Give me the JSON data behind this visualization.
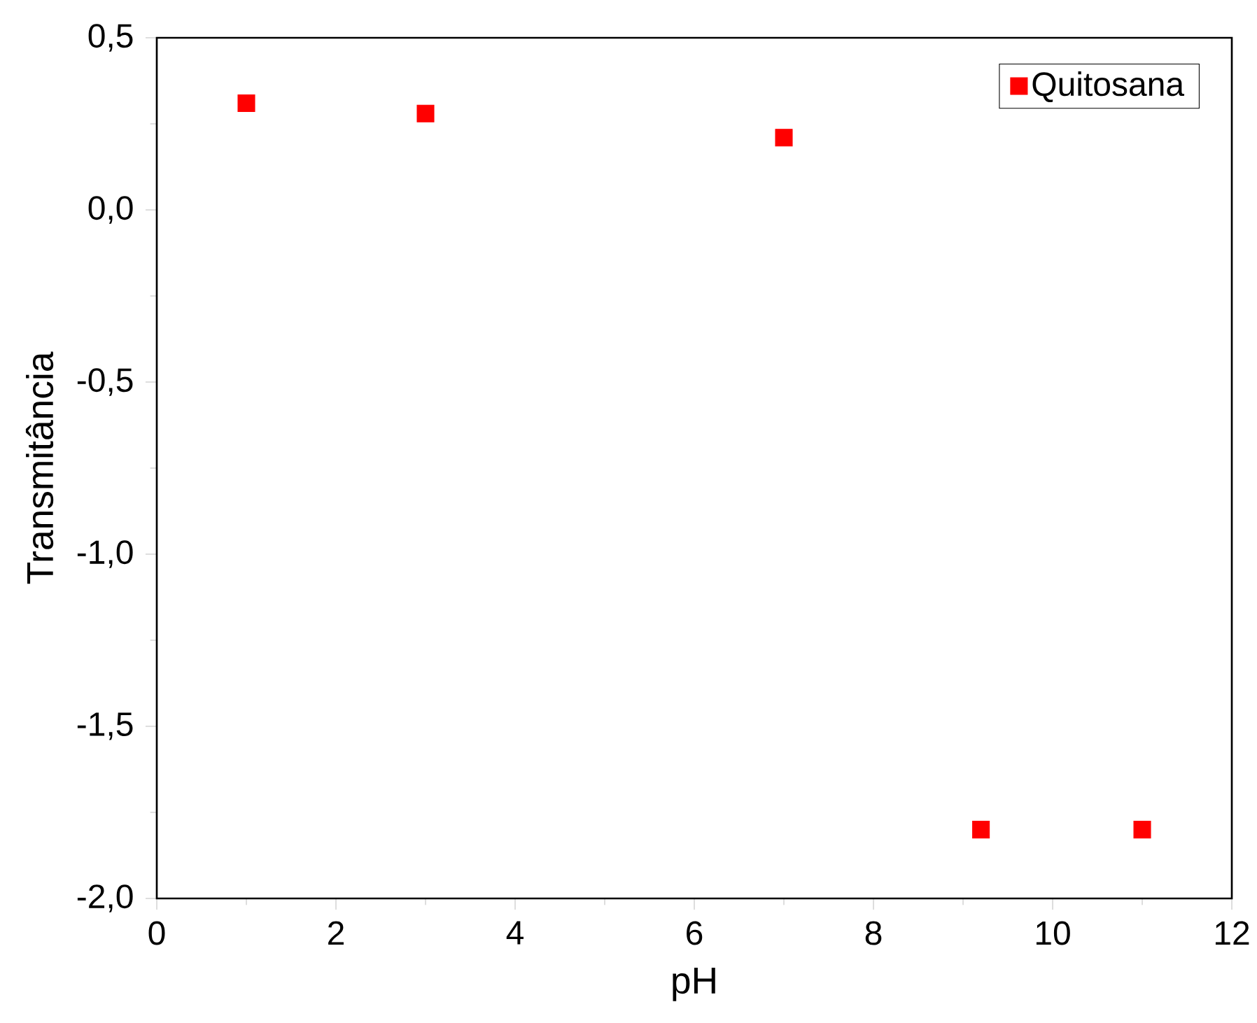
{
  "chart_data": {
    "type": "scatter",
    "xlabel": "pH",
    "ylabel": "Transmitância",
    "x": [
      1,
      3,
      7,
      9.2,
      11
    ],
    "series": [
      {
        "name": "Quitosana",
        "color": "#ff0000",
        "values": [
          0.31,
          0.28,
          0.21,
          -1.8,
          -1.8
        ]
      }
    ],
    "xlim": [
      0,
      12
    ],
    "xticks": [
      0,
      2,
      4,
      6,
      8,
      10,
      12
    ],
    "ylim": [
      -2.0,
      0.5
    ],
    "yticks": [
      {
        "value": -2.0,
        "label": "-2,0"
      },
      {
        "value": -1.5,
        "label": "-1,5"
      },
      {
        "value": -1.0,
        "label": "-1,0"
      },
      {
        "value": -0.5,
        "label": "-0,5"
      },
      {
        "value": 0.0,
        "label": "0,0"
      },
      {
        "value": 0.5,
        "label": "0,5"
      }
    ],
    "marker": "square",
    "legend": "top right",
    "grid": false
  }
}
